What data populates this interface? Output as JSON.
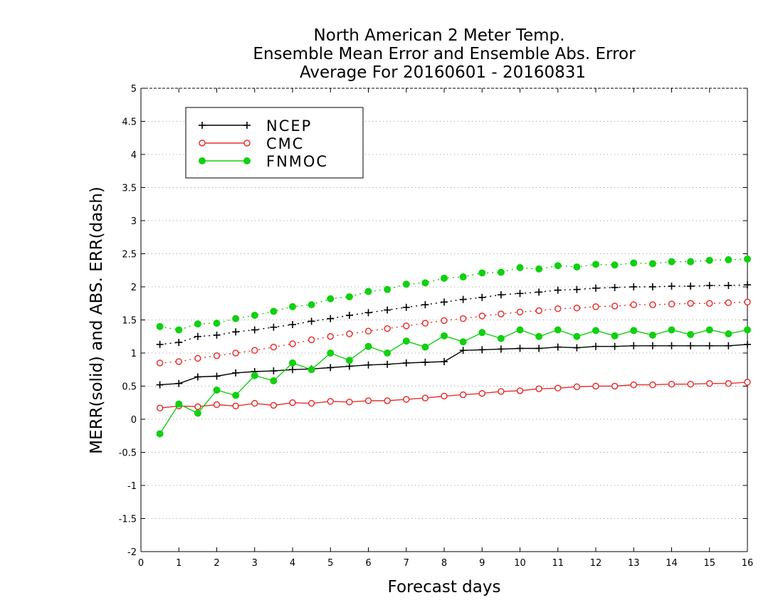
{
  "chart_data": {
    "type": "line",
    "title_lines": [
      "North American 2 Meter Temp.",
      "Ensemble Mean Error and Ensemble Abs. Error",
      "Average For 20160601 - 20160831"
    ],
    "xlabel": "Forecast days",
    "ylabel": "MERR(solid) and ABS. ERR(dash)",
    "xlim": [
      0,
      16
    ],
    "ylim": [
      -2,
      5
    ],
    "xticks": [
      "0",
      "1",
      "2",
      "3",
      "4",
      "5",
      "6",
      "7",
      "8",
      "9",
      "10",
      "11",
      "12",
      "13",
      "14",
      "15",
      "16"
    ],
    "yticks": [
      "-2",
      "-1.5",
      "-1",
      "-0.5",
      "0",
      "0.5",
      "1",
      "1.5",
      "2",
      "2.5",
      "3",
      "3.5",
      "4",
      "4.5",
      "5"
    ],
    "grid": "horizontal dotted",
    "legend_position": "top-left",
    "x": [
      0.5,
      1,
      1.5,
      2,
      2.5,
      3,
      3.5,
      4,
      4.5,
      5,
      5.5,
      6,
      6.5,
      7,
      7.5,
      8,
      8.5,
      9,
      9.5,
      10,
      10.5,
      11,
      11.5,
      12,
      12.5,
      13,
      13.5,
      14,
      14.5,
      15,
      15.5,
      16
    ],
    "series": [
      {
        "name": "NCEP",
        "color": "#000000",
        "marker": "plus",
        "merr": [
          0.52,
          0.54,
          0.64,
          0.65,
          0.7,
          0.72,
          0.73,
          0.75,
          0.76,
          0.78,
          0.8,
          0.82,
          0.83,
          0.85,
          0.86,
          0.87,
          1.04,
          1.05,
          1.06,
          1.07,
          1.07,
          1.09,
          1.08,
          1.1,
          1.1,
          1.11,
          1.11,
          1.11,
          1.11,
          1.11,
          1.11,
          1.13
        ],
        "abs_err": [
          1.13,
          1.16,
          1.25,
          1.27,
          1.32,
          1.35,
          1.39,
          1.43,
          1.48,
          1.52,
          1.57,
          1.61,
          1.65,
          1.69,
          1.73,
          1.77,
          1.81,
          1.84,
          1.88,
          1.9,
          1.92,
          1.95,
          1.96,
          1.98,
          1.99,
          2.0,
          2.0,
          2.01,
          2.01,
          2.02,
          2.02,
          2.03
        ]
      },
      {
        "name": "CMC",
        "color": "#e83030",
        "marker": "open-circle",
        "merr": [
          0.17,
          0.2,
          0.19,
          0.22,
          0.2,
          0.24,
          0.21,
          0.25,
          0.24,
          0.27,
          0.26,
          0.28,
          0.28,
          0.3,
          0.32,
          0.35,
          0.37,
          0.39,
          0.42,
          0.43,
          0.46,
          0.47,
          0.49,
          0.5,
          0.5,
          0.52,
          0.52,
          0.53,
          0.53,
          0.54,
          0.54,
          0.56
        ],
        "abs_err": [
          0.85,
          0.87,
          0.92,
          0.96,
          1.0,
          1.04,
          1.09,
          1.14,
          1.2,
          1.25,
          1.29,
          1.33,
          1.37,
          1.41,
          1.45,
          1.49,
          1.52,
          1.56,
          1.59,
          1.62,
          1.64,
          1.67,
          1.68,
          1.7,
          1.71,
          1.73,
          1.73,
          1.74,
          1.75,
          1.75,
          1.76,
          1.77
        ]
      },
      {
        "name": "FNMOC",
        "color": "#10d010",
        "marker": "filled-circle",
        "merr": [
          -0.22,
          0.23,
          0.09,
          0.44,
          0.36,
          0.66,
          0.58,
          0.85,
          0.75,
          1.0,
          0.89,
          1.1,
          1.0,
          1.18,
          1.09,
          1.26,
          1.17,
          1.31,
          1.22,
          1.35,
          1.25,
          1.35,
          1.25,
          1.34,
          1.26,
          1.34,
          1.27,
          1.35,
          1.28,
          1.35,
          1.29,
          1.35
        ],
        "abs_err": [
          1.4,
          1.35,
          1.44,
          1.45,
          1.52,
          1.57,
          1.63,
          1.7,
          1.73,
          1.82,
          1.85,
          1.93,
          1.96,
          2.04,
          2.06,
          2.13,
          2.15,
          2.21,
          2.22,
          2.29,
          2.27,
          2.32,
          2.3,
          2.34,
          2.33,
          2.36,
          2.35,
          2.38,
          2.38,
          2.4,
          2.41,
          2.42
        ]
      }
    ]
  }
}
